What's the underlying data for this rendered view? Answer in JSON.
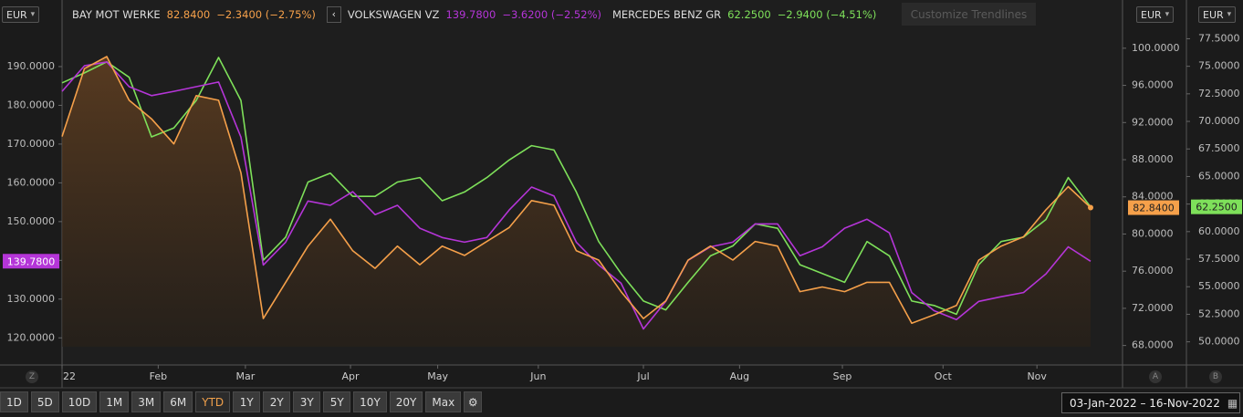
{
  "ui": {
    "currency": "EUR",
    "customize": "Customize Trendlines",
    "collapse": "‹",
    "ranges": [
      "1D",
      "5D",
      "10D",
      "1M",
      "3M",
      "6M",
      "YTD",
      "1Y",
      "2Y",
      "3Y",
      "5Y",
      "10Y",
      "20Y",
      "Max"
    ],
    "active_range": "YTD",
    "date_range": "03-Jan-2022  –  16-Nov-2022",
    "axis_keys": [
      "Z",
      "A",
      "B"
    ]
  },
  "chart_data": {
    "type": "line",
    "xlim": [
      0,
      46
    ],
    "xticks": [
      {
        "value": 0,
        "label": "22"
      },
      {
        "value": 4.3,
        "label": "Feb"
      },
      {
        "value": 8.2,
        "label": "Mar"
      },
      {
        "value": 12.9,
        "label": "Apr"
      },
      {
        "value": 16.8,
        "label": "May"
      },
      {
        "value": 21.3,
        "label": "Jun"
      },
      {
        "value": 26.0,
        "label": "Jul"
      },
      {
        "value": 30.3,
        "label": "Aug"
      },
      {
        "value": 34.9,
        "label": "Sep"
      },
      {
        "value": 39.4,
        "label": "Oct"
      },
      {
        "value": 43.6,
        "label": "Nov"
      }
    ],
    "ylim": [
      113,
      206
    ],
    "yticks": [
      {
        "value": 120,
        "label": "120.0000"
      },
      {
        "value": 130,
        "label": "130.0000"
      },
      {
        "value": 140,
        "label": "140.0000"
      },
      {
        "value": 150,
        "label": "150.0000"
      },
      {
        "value": 160,
        "label": "160.0000"
      },
      {
        "value": 170,
        "label": "170.0000"
      },
      {
        "value": 180,
        "label": "180.0000"
      },
      {
        "value": 190,
        "label": "190.0000"
      }
    ],
    "y2lim": [
      65.9,
      104.7
    ],
    "y2ticks": [
      {
        "value": 68,
        "label": "68.0000"
      },
      {
        "value": 72,
        "label": "72.0000"
      },
      {
        "value": 76,
        "label": "76.0000"
      },
      {
        "value": 80,
        "label": "80.0000"
      },
      {
        "value": 84,
        "label": "84.0000"
      },
      {
        "value": 88,
        "label": "88.0000"
      },
      {
        "value": 92,
        "label": "92.0000"
      },
      {
        "value": 96,
        "label": "96.0000"
      },
      {
        "value": 100,
        "label": "100.0000"
      }
    ],
    "y3lim": [
      47.9,
      80.6
    ],
    "y3ticks": [
      {
        "value": 50,
        "label": "50.0000"
      },
      {
        "value": 52.5,
        "label": "52.5000"
      },
      {
        "value": 55,
        "label": "55.0000"
      },
      {
        "value": 57.5,
        "label": "57.5000"
      },
      {
        "value": 60,
        "label": "60.0000"
      },
      {
        "value": 62.5,
        "label": "62.5000"
      },
      {
        "value": 65,
        "label": "65.0000"
      },
      {
        "value": 67.5,
        "label": "67.5000"
      },
      {
        "value": 70,
        "label": "70.0000"
      },
      {
        "value": 72.5,
        "label": "72.5000"
      },
      {
        "value": 75,
        "label": "75.0000"
      },
      {
        "value": 77.5,
        "label": "77.5000"
      }
    ],
    "grid": false,
    "series": [
      {
        "name": "BAY MOT WERKE",
        "color": "#f5a04a",
        "axis": "y2",
        "area": true,
        "last_label": "82.8400",
        "change": "−2.3400 (−2.75%)",
        "values": [
          90.5,
          97.8,
          99.1,
          94.4,
          92.4,
          89.7,
          94.9,
          94.4,
          86.6,
          70.9,
          74.8,
          78.7,
          81.6,
          78.2,
          76.3,
          78.7,
          76.7,
          78.7,
          77.7,
          79.2,
          80.7,
          83.6,
          83.1,
          78.2,
          77.2,
          73.8,
          70.9,
          72.8,
          77.2,
          78.7,
          77.2,
          79.2,
          78.7,
          73.8,
          74.3,
          73.8,
          74.8,
          74.8,
          70.4,
          71.3,
          72.3,
          77.2,
          78.7,
          79.7,
          82.6,
          85.1,
          82.84
        ]
      },
      {
        "name": "VOLKSWAGEN VZ",
        "color": "#b535d8",
        "axis": "y",
        "last_label": "139.7800",
        "change": "−3.6200 (−2.52%)",
        "values": [
          183.6,
          190.2,
          191.2,
          184.8,
          182.5,
          183.6,
          184.8,
          186.0,
          171.8,
          138.8,
          144.7,
          155.3,
          154.2,
          157.7,
          151.8,
          154.2,
          148.3,
          145.9,
          144.7,
          145.9,
          153.0,
          158.9,
          156.6,
          144.7,
          138.8,
          134.1,
          122.3,
          129.4,
          140.0,
          143.5,
          144.7,
          149.4,
          149.4,
          141.2,
          143.5,
          148.3,
          150.6,
          147.1,
          131.7,
          127.0,
          124.7,
          129.4,
          130.6,
          131.7,
          136.5,
          143.5,
          139.78
        ]
      },
      {
        "name": "MERCEDES BENZ GR",
        "color": "#7ee05a",
        "axis": "y3",
        "last_label": "62.2500",
        "change": "−2.9400 (−4.51%)",
        "values": [
          73.5,
          74.4,
          75.4,
          74.0,
          68.6,
          69.4,
          71.9,
          75.8,
          71.9,
          57.4,
          59.5,
          64.5,
          65.3,
          63.2,
          63.2,
          64.5,
          64.9,
          62.8,
          63.6,
          64.9,
          66.5,
          67.8,
          67.4,
          63.6,
          59.1,
          56.2,
          53.7,
          52.9,
          55.4,
          57.8,
          58.7,
          60.7,
          60.3,
          57.0,
          56.2,
          55.4,
          59.1,
          57.8,
          53.7,
          53.3,
          52.5,
          57.0,
          59.1,
          59.5,
          61.1,
          64.9,
          62.25
        ]
      }
    ]
  }
}
